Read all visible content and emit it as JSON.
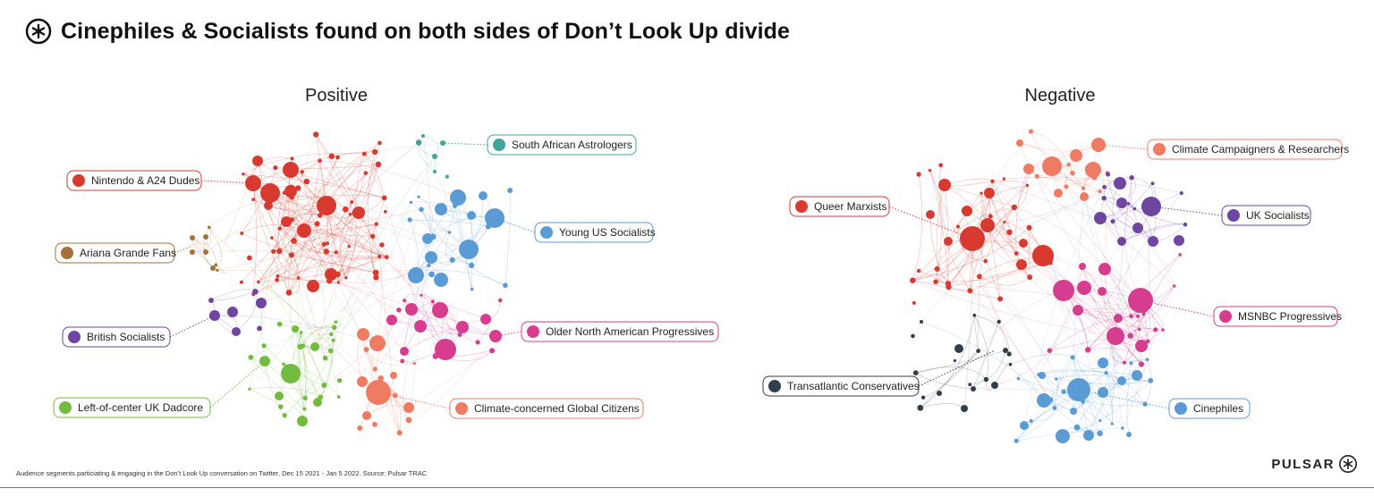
{
  "header": {
    "title": "Cinephiles & Socialists found on both sides of Don’t Look Up divide",
    "logo_icon": "pulsar-star-icon"
  },
  "footer": {
    "note": "Audience segments particiating & engaging in the Don’t Look Up conversation on Twitter, Dec 15 2021 - Jan 5 2022. Source: Pulsar TRAC",
    "brand": "PULSAR",
    "brand_icon": "pulsar-star-icon"
  },
  "colors": {
    "red": "#d93a2f",
    "blue": "#5b9bd5",
    "pink": "#d63d8f",
    "salmon": "#ef7b63",
    "green": "#72bb3f",
    "purple": "#6e45a0",
    "brown": "#a5703a",
    "teal": "#3fa59b",
    "navy": "#2f3f4c"
  },
  "panels": [
    {
      "title": "Positive",
      "segments": [
        {
          "label": "Nintendo & A24 Dudes",
          "color": "red"
        },
        {
          "label": "Ariana Grande Fans",
          "color": "brown"
        },
        {
          "label": "British Socialists",
          "color": "purple"
        },
        {
          "label": "Left-of-center UK Dadcore",
          "color": "green"
        },
        {
          "label": "South African Astrologers",
          "color": "teal"
        },
        {
          "label": "Young US Socialists",
          "color": "blue"
        },
        {
          "label": "Older North American Progressives",
          "color": "pink"
        },
        {
          "label": "Climate-concerned Global Citizens",
          "color": "salmon"
        }
      ]
    },
    {
      "title": "Negative",
      "segments": [
        {
          "label": "Queer Marxists",
          "color": "red"
        },
        {
          "label": "Transatlantic Conservatives",
          "color": "navy"
        },
        {
          "label": "Climate Campaigners & Researchers",
          "color": "salmon"
        },
        {
          "label": "UK Socialists",
          "color": "purple"
        },
        {
          "label": "MSNBC Progressives",
          "color": "pink"
        },
        {
          "label": "Cinephiles",
          "color": "blue"
        }
      ]
    }
  ]
}
